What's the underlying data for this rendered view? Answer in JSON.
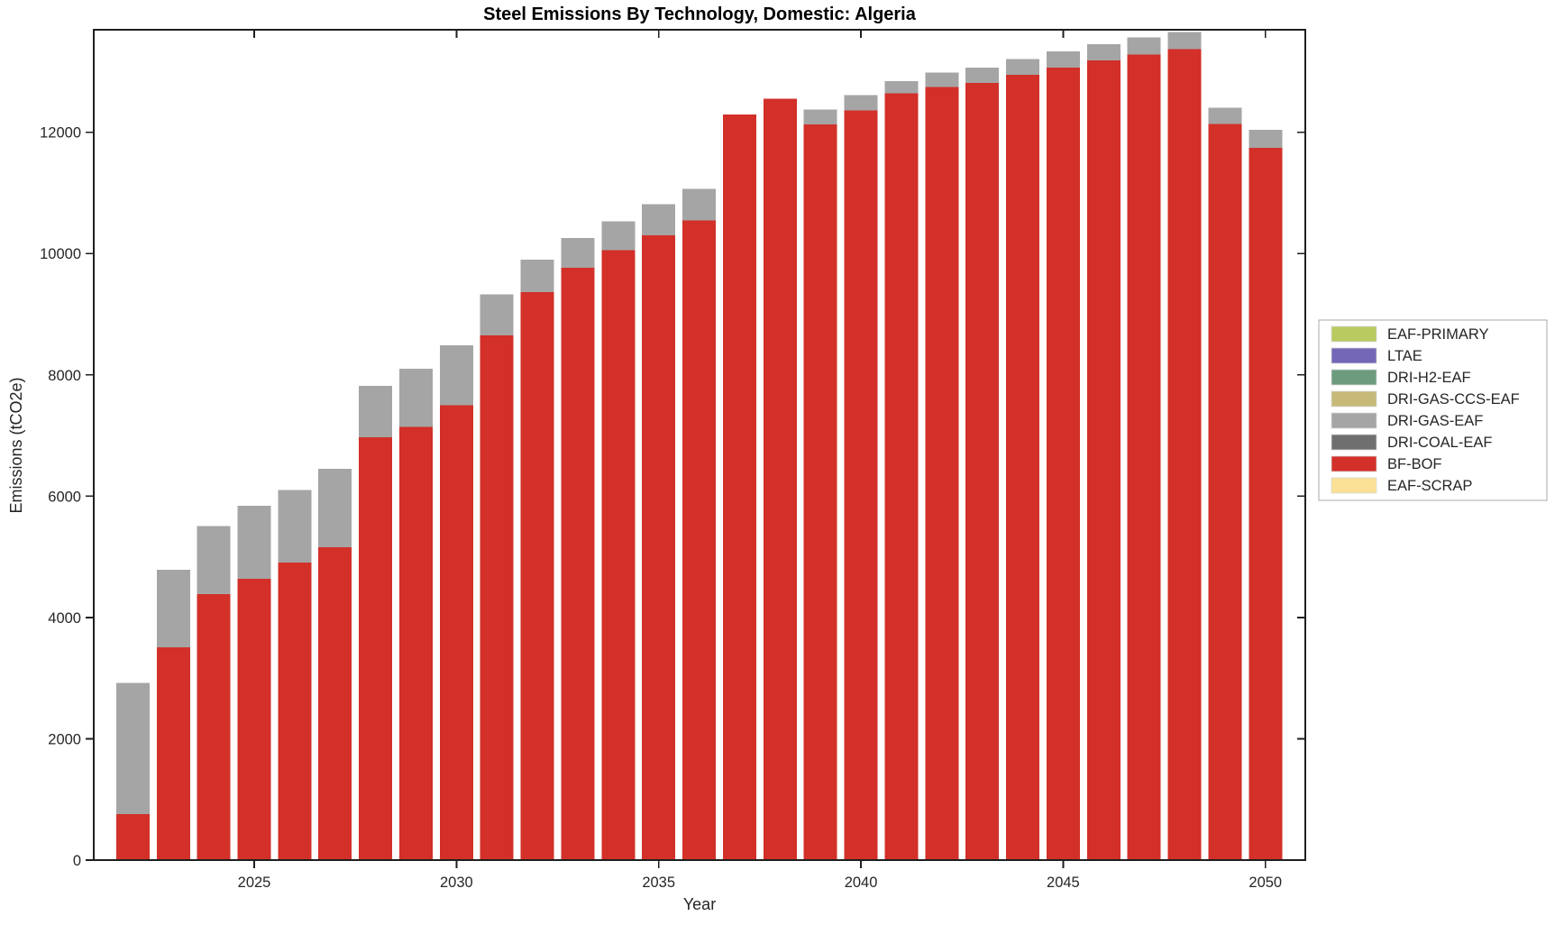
{
  "figure": {
    "title": "Steel Emissions By Technology, Domestic: Algeria",
    "xlabel": "Year",
    "ylabel": "Emissions (tCO2e)"
  },
  "axes": {
    "y_ticks": [
      0,
      2000,
      4000,
      6000,
      8000,
      10000,
      12000
    ],
    "x_ticks": [
      2025,
      2030,
      2035,
      2040,
      2045,
      2050
    ],
    "ylim": [
      0,
      13690
    ],
    "grid": false,
    "box": true
  },
  "legend": {
    "position": "right",
    "items": [
      {
        "label": "EAF-PRIMARY",
        "color": "#b9ca60"
      },
      {
        "label": "LTAE",
        "color": "#7467b7"
      },
      {
        "label": "DRI-H2-EAF",
        "color": "#6d9b7e"
      },
      {
        "label": "DRI-GAS-CCS-EAF",
        "color": "#c7ba79"
      },
      {
        "label": "DRI-GAS-EAF",
        "color": "#a5a5a5"
      },
      {
        "label": "DRI-COAL-EAF",
        "color": "#6f6f6f"
      },
      {
        "label": "BF-BOF",
        "color": "#d23029"
      },
      {
        "label": "EAF-SCRAP",
        "color": "#fbe196"
      }
    ]
  },
  "chart_data": {
    "type": "bar",
    "stacked": true,
    "title": "Steel Emissions By Technology, Domestic: Algeria",
    "xlabel": "Year",
    "ylabel": "Emissions (tCO2e)",
    "ylim": [
      0,
      13690
    ],
    "legend_position": "right",
    "x": [
      2022,
      2023,
      2024,
      2025,
      2026,
      2027,
      2028,
      2029,
      2030,
      2031,
      2032,
      2033,
      2034,
      2035,
      2036,
      2037,
      2038,
      2039,
      2040,
      2041,
      2042,
      2043,
      2044,
      2045,
      2046,
      2047,
      2048,
      2049,
      2050
    ],
    "series": [
      {
        "name": "EAF-SCRAP",
        "color": "#fbe196",
        "values": [
          0,
          0,
          0,
          0,
          0,
          0,
          0,
          0,
          0,
          0,
          0,
          0,
          0,
          0,
          0,
          0,
          0,
          0,
          0,
          0,
          0,
          0,
          0,
          0,
          0,
          0,
          0,
          0,
          0
        ]
      },
      {
        "name": "BF-BOF",
        "color": "#d23029",
        "values": [
          760,
          3505,
          4385,
          4640,
          4905,
          5160,
          6970,
          7140,
          7500,
          8650,
          9365,
          9765,
          10055,
          10300,
          10545,
          12290,
          12555,
          12130,
          12360,
          12645,
          12745,
          12810,
          12945,
          13065,
          13185,
          13280,
          13370,
          12140,
          11740
        ]
      },
      {
        "name": "DRI-COAL-EAF",
        "color": "#6f6f6f",
        "values": [
          0,
          0,
          0,
          0,
          0,
          0,
          0,
          0,
          0,
          0,
          0,
          0,
          0,
          0,
          0,
          0,
          0,
          0,
          0,
          0,
          0,
          0,
          0,
          0,
          0,
          0,
          0,
          0,
          0
        ]
      },
      {
        "name": "DRI-GAS-EAF",
        "color": "#a5a5a5",
        "values": [
          2160,
          1285,
          1125,
          1200,
          1195,
          1290,
          845,
          960,
          990,
          675,
          535,
          490,
          480,
          515,
          525,
          0,
          0,
          245,
          255,
          200,
          240,
          255,
          260,
          270,
          265,
          280,
          280,
          265,
          300
        ]
      },
      {
        "name": "DRI-GAS-CCS-EAF",
        "color": "#c7ba79",
        "values": [
          0,
          0,
          0,
          0,
          0,
          0,
          0,
          0,
          0,
          0,
          0,
          0,
          0,
          0,
          0,
          0,
          0,
          0,
          0,
          0,
          0,
          0,
          0,
          0,
          0,
          0,
          0,
          0,
          0
        ]
      },
      {
        "name": "DRI-H2-EAF",
        "color": "#6d9b7e",
        "values": [
          0,
          0,
          0,
          0,
          0,
          0,
          0,
          0,
          0,
          0,
          0,
          0,
          0,
          0,
          0,
          0,
          0,
          0,
          0,
          0,
          0,
          0,
          0,
          0,
          0,
          0,
          0,
          0,
          0
        ]
      },
      {
        "name": "LTAE",
        "color": "#7467b7",
        "values": [
          0,
          0,
          0,
          0,
          0,
          0,
          0,
          0,
          0,
          0,
          0,
          0,
          0,
          0,
          0,
          0,
          0,
          0,
          0,
          0,
          0,
          0,
          0,
          0,
          0,
          0,
          0,
          0,
          0
        ]
      },
      {
        "name": "EAF-PRIMARY",
        "color": "#b9ca60",
        "values": [
          0,
          0,
          0,
          0,
          0,
          0,
          0,
          0,
          0,
          0,
          0,
          0,
          0,
          0,
          0,
          0,
          0,
          0,
          0,
          0,
          0,
          0,
          0,
          0,
          0,
          0,
          0,
          0,
          0
        ]
      }
    ],
    "stack_order": "bottom-to-top"
  }
}
